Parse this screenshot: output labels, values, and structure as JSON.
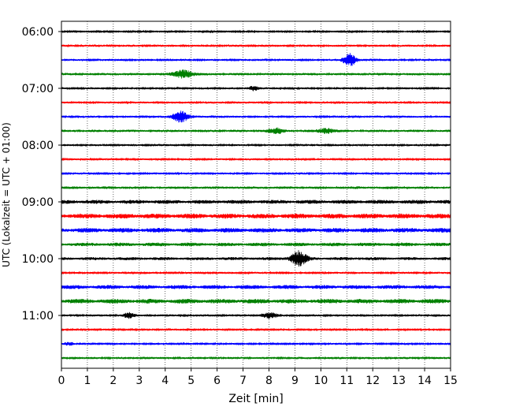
{
  "chart_data": {
    "type": "line",
    "title": "",
    "xlabel": "Zeit  [min]",
    "ylabel": "UTC (Lokalzeit = UTC + 01:00)",
    "xlim": [
      0,
      15
    ],
    "x_ticks": [
      0,
      1,
      2,
      3,
      4,
      5,
      6,
      7,
      8,
      9,
      10,
      11,
      12,
      13,
      14,
      15
    ],
    "y_ticks": [
      "06:00",
      "07:00",
      "08:00",
      "09:00",
      "10:00",
      "11:00"
    ],
    "x_grid": true,
    "y_grid": false,
    "trace_interval_min": 15,
    "trace_colors": [
      "#000000",
      "#ff0000",
      "#0000ff",
      "#008000"
    ],
    "traces": [
      {
        "start": "06:00",
        "color": "#000000",
        "noise": 0.9,
        "events": []
      },
      {
        "start": "06:15",
        "color": "#ff0000",
        "noise": 1.4,
        "events": []
      },
      {
        "start": "06:30",
        "color": "#0000ff",
        "noise": 1.3,
        "events": [
          {
            "t": 11.1,
            "amp": 8,
            "width": 0.25
          }
        ]
      },
      {
        "start": "06:45",
        "color": "#008000",
        "noise": 1.6,
        "events": [
          {
            "t": 4.7,
            "amp": 5,
            "width": 0.35
          }
        ]
      },
      {
        "start": "07:00",
        "color": "#000000",
        "noise": 1.2,
        "events": [
          {
            "t": 7.4,
            "amp": 3,
            "width": 0.2
          }
        ]
      },
      {
        "start": "07:15",
        "color": "#ff0000",
        "noise": 1.3,
        "events": []
      },
      {
        "start": "07:30",
        "color": "#0000ff",
        "noise": 1.3,
        "events": [
          {
            "t": 4.6,
            "amp": 7,
            "width": 0.3
          }
        ]
      },
      {
        "start": "07:45",
        "color": "#008000",
        "noise": 1.6,
        "events": [
          {
            "t": 8.3,
            "amp": 3,
            "width": 0.3
          },
          {
            "t": 10.2,
            "amp": 3,
            "width": 0.3
          }
        ]
      },
      {
        "start": "08:00",
        "color": "#000000",
        "noise": 1.3,
        "events": []
      },
      {
        "start": "08:15",
        "color": "#ff0000",
        "noise": 1.2,
        "events": []
      },
      {
        "start": "08:30",
        "color": "#0000ff",
        "noise": 1.2,
        "events": []
      },
      {
        "start": "08:45",
        "color": "#008000",
        "noise": 1.7,
        "events": []
      },
      {
        "start": "09:00",
        "color": "#000000",
        "noise": 2.6,
        "events": []
      },
      {
        "start": "09:15",
        "color": "#ff0000",
        "noise": 3.2,
        "events": []
      },
      {
        "start": "09:30",
        "color": "#0000ff",
        "noise": 3.0,
        "events": []
      },
      {
        "start": "09:45",
        "color": "#008000",
        "noise": 2.4,
        "events": []
      },
      {
        "start": "10:00",
        "color": "#000000",
        "noise": 2.0,
        "events": [
          {
            "t": 9.15,
            "amp": 9,
            "width": 0.3
          }
        ]
      },
      {
        "start": "10:15",
        "color": "#ff0000",
        "noise": 1.2,
        "events": []
      },
      {
        "start": "10:30",
        "color": "#0000ff",
        "noise": 2.6,
        "events": []
      },
      {
        "start": "10:45",
        "color": "#008000",
        "noise": 3.0,
        "events": []
      },
      {
        "start": "11:00",
        "color": "#000000",
        "noise": 1.4,
        "events": [
          {
            "t": 2.6,
            "amp": 3,
            "width": 0.2
          },
          {
            "t": 8.0,
            "amp": 3,
            "width": 0.3
          }
        ]
      },
      {
        "start": "11:15",
        "color": "#ff0000",
        "noise": 1.1,
        "events": []
      },
      {
        "start": "11:30",
        "color": "#0000ff",
        "noise": 1.1,
        "events": [
          {
            "t": 0.3,
            "amp": 2,
            "width": 0.2
          }
        ]
      },
      {
        "start": "11:45",
        "color": "#008000",
        "noise": 1.4,
        "events": []
      }
    ]
  }
}
